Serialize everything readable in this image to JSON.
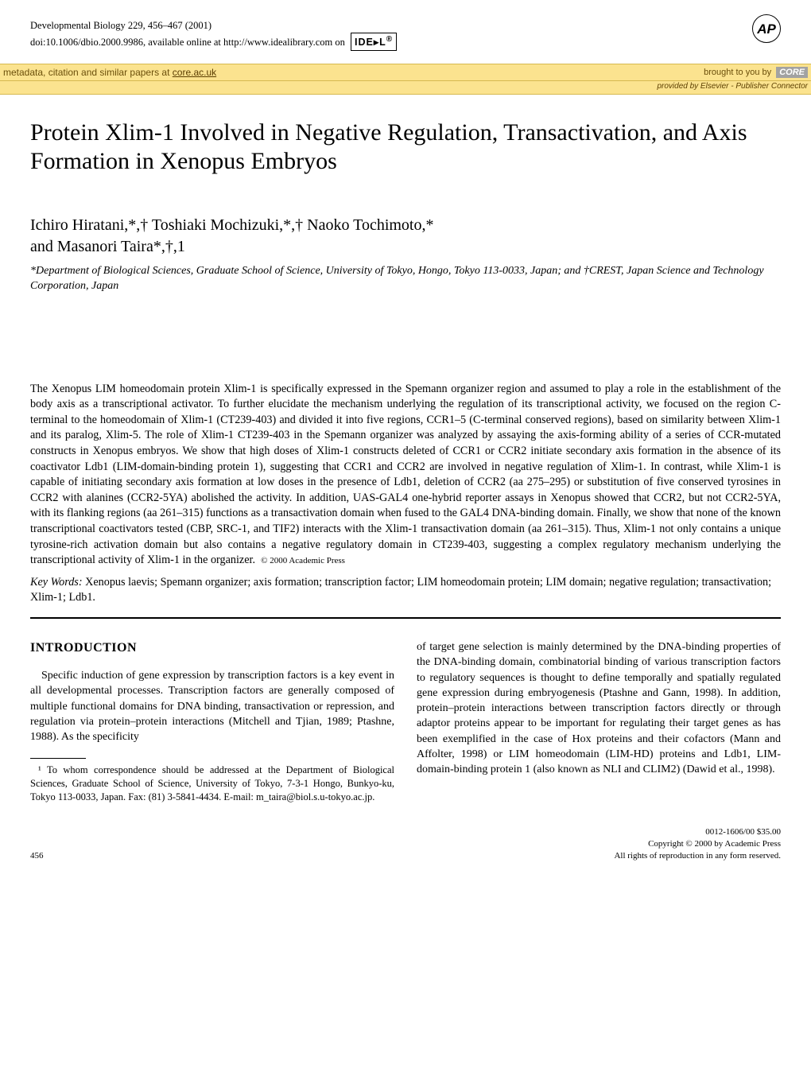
{
  "header": {
    "journal_line": "Developmental Biology 229, 456–467 (2001)",
    "doi_line": "doi:10.1006/dbio.2000.9986, available online at http://www.idealibrary.com on",
    "ideal_logo": "IDE▸L",
    "ideal_reg": "®"
  },
  "ap_logo": "AP",
  "core_banner": {
    "left_text": "metadata, citation and similar papers at ",
    "link_text": "core.ac.uk",
    "right_prefix": "brought to you by",
    "core": "CORE",
    "sub_text": "provided by Elsevier - Publisher Connector"
  },
  "title": "Protein Xlim-1 Involved in Negative Regulation, Transactivation, and Axis Formation in Xenopus Embryos",
  "title_masked_line": "",
  "authors_line1": "Ichiro Hiratani,*,† Toshiaki Mochizuki,*,† Naoko Tochimoto,*",
  "authors_line2": "and Masanori Taira*,†,1",
  "affiliations": "*Department of Biological Sciences, Graduate School of Science, University of Tokyo, Hongo, Tokyo 113-0033, Japan; and †CREST, Japan Science and Technology Corporation, Japan",
  "abstract": "The Xenopus LIM homeodomain protein Xlim-1 is specifically expressed in the Spemann organizer region and assumed to play a role in the establishment of the body axis as a transcriptional activator. To further elucidate the mechanism underlying the regulation of its transcriptional activity, we focused on the region C-terminal to the homeodomain of Xlim-1 (CT239-403) and divided it into five regions, CCR1–5 (C-terminal conserved regions), based on similarity between Xlim-1 and its paralog, Xlim-5. The role of Xlim-1 CT239-403 in the Spemann organizer was analyzed by assaying the axis-forming ability of a series of CCR-mutated constructs in Xenopus embryos. We show that high doses of Xlim-1 constructs deleted of CCR1 or CCR2 initiate secondary axis formation in the absence of its coactivator Ldb1 (LIM-domain-binding protein 1), suggesting that CCR1 and CCR2 are involved in negative regulation of Xlim-1. In contrast, while Xlim-1 is capable of initiating secondary axis formation at low doses in the presence of Ldb1, deletion of CCR2 (aa 275–295) or substitution of five conserved tyrosines in CCR2 with alanines (CCR2-5YA) abolished the activity. In addition, UAS-GAL4 one-hybrid reporter assays in Xenopus showed that CCR2, but not CCR2-5YA, with its flanking regions (aa 261–315) functions as a transactivation domain when fused to the GAL4 DNA-binding domain. Finally, we show that none of the known transcriptional coactivators tested (CBP, SRC-1, and TIF2) interacts with the Xlim-1 transactivation domain (aa 261–315). Thus, Xlim-1 not only contains a unique tyrosine-rich activation domain but also contains a negative regulatory domain in CT239-403, suggesting a complex regulatory mechanism underlying the transcriptional activity of Xlim-1 in the organizer.",
  "abstract_copyright": "© 2000 Academic Press",
  "keywords_label": "Key Words:",
  "keywords": " Xenopus laevis; Spemann organizer; axis formation; transcription factor; LIM homeodomain protein; LIM domain; negative regulation; transactivation; Xlim-1; Ldb1.",
  "intro_heading": "INTRODUCTION",
  "col_left_p1": "Specific induction of gene expression by transcription factors is a key event in all developmental processes. Transcription factors are generally composed of multiple functional domains for DNA binding, transactivation or repression, and regulation via protein–protein interactions (Mitchell and Tjian, 1989; Ptashne, 1988). As the specificity",
  "footnote": "¹ To whom correspondence should be addressed at the Department of Biological Sciences, Graduate School of Science, University of Tokyo, 7-3-1 Hongo, Bunkyo-ku, Tokyo 113-0033, Japan. Fax: (81) 3-5841-4434. E-mail: m_taira@biol.s.u-tokyo.ac.jp.",
  "col_right_p1": "of target gene selection is mainly determined by the DNA-binding properties of the DNA-binding domain, combinatorial binding of various transcription factors to regulatory sequences is thought to define temporally and spatially regulated gene expression during embryogenesis (Ptashne and Gann, 1998). In addition, protein–protein interactions between transcription factors directly or through adaptor proteins appear to be important for regulating their target genes as has been exemplified in the case of Hox proteins and their cofactors (Mann and Affolter, 1998) or LIM homeodomain (LIM-HD) proteins and Ldb1, LIM-domain-binding protein 1 (also known as NLI and CLIM2) (Dawid et al., 1998).",
  "footer": {
    "page_number": "456",
    "issn_line": "0012-1606/00 $35.00",
    "copyright_line": "Copyright © 2000 by Academic Press",
    "rights_line": "All rights of reproduction in any form reserved."
  },
  "colors": {
    "banner_bg": "#fbe38f",
    "banner_text": "#6b4f0a",
    "core_bg": "#a2a2a2",
    "core_text": "#ffffff"
  }
}
